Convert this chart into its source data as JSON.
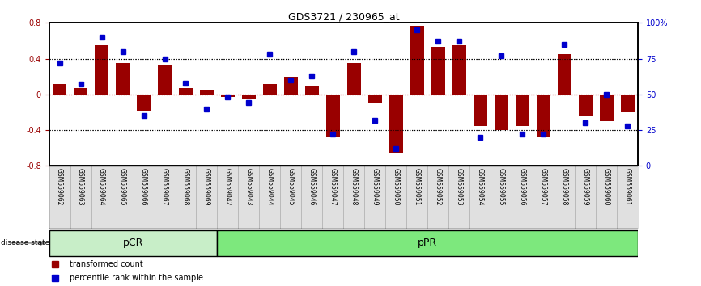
{
  "title": "GDS3721 / 230965_at",
  "samples": [
    "GSM559062",
    "GSM559063",
    "GSM559064",
    "GSM559065",
    "GSM559066",
    "GSM559067",
    "GSM559068",
    "GSM559069",
    "GSM559042",
    "GSM559043",
    "GSM559044",
    "GSM559045",
    "GSM559046",
    "GSM559047",
    "GSM559048",
    "GSM559049",
    "GSM559050",
    "GSM559051",
    "GSM559052",
    "GSM559053",
    "GSM559054",
    "GSM559055",
    "GSM559056",
    "GSM559057",
    "GSM559058",
    "GSM559059",
    "GSM559060",
    "GSM559061"
  ],
  "red_bars": [
    0.12,
    0.07,
    0.55,
    0.35,
    -0.18,
    0.32,
    0.07,
    0.05,
    -0.03,
    -0.05,
    0.12,
    0.2,
    0.1,
    -0.47,
    0.35,
    -0.1,
    -0.65,
    0.77,
    0.53,
    0.55,
    -0.35,
    -0.4,
    -0.35,
    -0.47,
    0.45,
    -0.24,
    -0.3,
    -0.2
  ],
  "blue_dots": [
    72,
    57,
    90,
    80,
    35,
    75,
    58,
    40,
    48,
    44,
    78,
    60,
    63,
    22,
    80,
    32,
    12,
    95,
    87,
    87,
    20,
    77,
    22,
    22,
    85,
    30,
    50,
    28
  ],
  "group_labels": [
    "pCR",
    "pPR"
  ],
  "group_counts": [
    8,
    20
  ],
  "group_colors_light": [
    "#d8f5d8",
    "#a0e8a0"
  ],
  "group_colors_dark": [
    "#90e890",
    "#50cc50"
  ],
  "ylim": [
    -0.8,
    0.8
  ],
  "y2lim": [
    0,
    100
  ],
  "bar_color": "#990000",
  "dot_color": "#0000cc",
  "zero_line_color": "#cc0000",
  "tick_label_fontsize": 6.5,
  "bar_width": 0.65
}
